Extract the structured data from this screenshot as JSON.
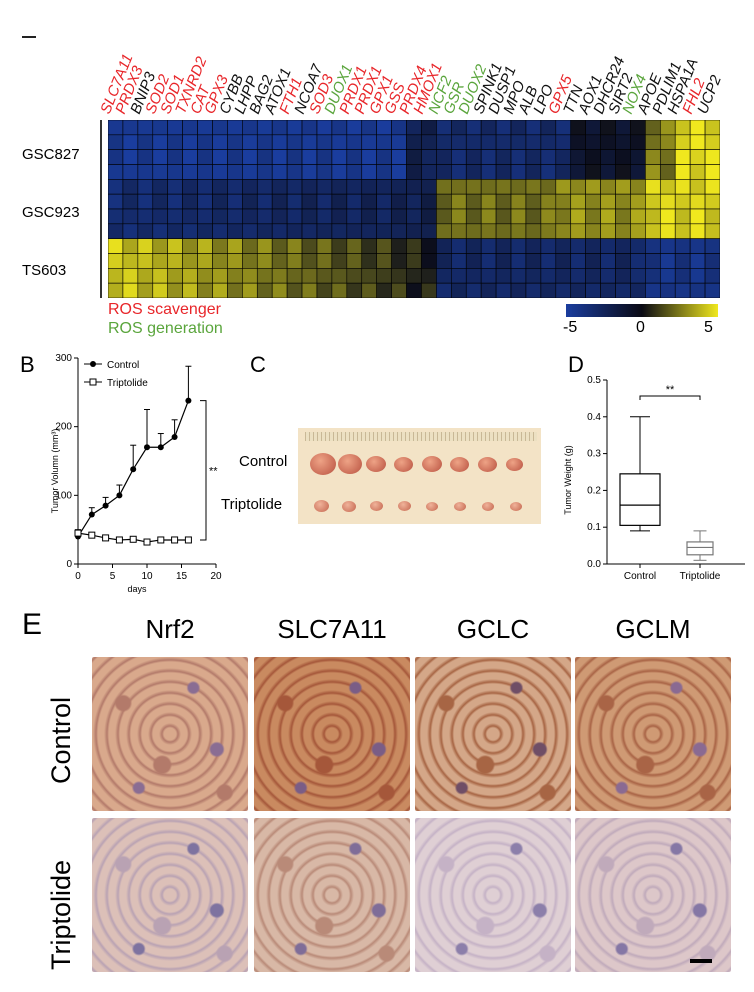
{
  "panel_a": {
    "genes": [
      {
        "name": "SLC7A11",
        "type": "scavenger"
      },
      {
        "name": "PRDX3",
        "type": "scavenger"
      },
      {
        "name": "BNIP3",
        "type": "other"
      },
      {
        "name": "SOD2",
        "type": "scavenger"
      },
      {
        "name": "SOD1",
        "type": "scavenger"
      },
      {
        "name": "TXNRD2",
        "type": "scavenger"
      },
      {
        "name": "CAT",
        "type": "scavenger"
      },
      {
        "name": "GPX3",
        "type": "scavenger"
      },
      {
        "name": "CYBB",
        "type": "other"
      },
      {
        "name": "LHPP",
        "type": "other"
      },
      {
        "name": "BAG2",
        "type": "other"
      },
      {
        "name": "ATOX1",
        "type": "other"
      },
      {
        "name": "FTH1",
        "type": "scavenger"
      },
      {
        "name": "NCOA7",
        "type": "other"
      },
      {
        "name": "SOD3",
        "type": "scavenger"
      },
      {
        "name": "DUOX1",
        "type": "generation"
      },
      {
        "name": "PRDX1",
        "type": "scavenger"
      },
      {
        "name": "PRDX1",
        "type": "scavenger"
      },
      {
        "name": "GPX1",
        "type": "scavenger"
      },
      {
        "name": "GSS",
        "type": "scavenger"
      },
      {
        "name": "PRDX4",
        "type": "scavenger"
      },
      {
        "name": "HMOX1",
        "type": "scavenger"
      },
      {
        "name": "NCF2",
        "type": "generation"
      },
      {
        "name": "GSR",
        "type": "generation"
      },
      {
        "name": "DUOX2",
        "type": "generation"
      },
      {
        "name": "SPINK1",
        "type": "other"
      },
      {
        "name": "DUSP1",
        "type": "other"
      },
      {
        "name": "MPO",
        "type": "other"
      },
      {
        "name": "ALB",
        "type": "other"
      },
      {
        "name": "LPO",
        "type": "other"
      },
      {
        "name": "GPX5",
        "type": "scavenger"
      },
      {
        "name": "TTN",
        "type": "other"
      },
      {
        "name": "AOX1",
        "type": "other"
      },
      {
        "name": "DHCR24",
        "type": "other"
      },
      {
        "name": "SIRT2",
        "type": "other"
      },
      {
        "name": "NOX4",
        "type": "generation"
      },
      {
        "name": "APOE",
        "type": "other"
      },
      {
        "name": "PDLIM1",
        "type": "other"
      },
      {
        "name": "HSPA1A",
        "type": "other"
      },
      {
        "name": "FHL2",
        "type": "scavenger"
      },
      {
        "name": "UCP2",
        "type": "other"
      }
    ],
    "rows": [
      "GSC827",
      "GSC923",
      "TS603"
    ],
    "legend": {
      "scavenger": "ROS scavenger",
      "generation": "ROS generation"
    },
    "colorbar": {
      "ticks": [
        "-5",
        "0",
        "5"
      ]
    },
    "colors": {
      "scavenger": "#e8262a",
      "generation": "#5aa53c",
      "low": "#1a3d9e",
      "mid": "#0a0a14",
      "high": "#f0e81e"
    }
  },
  "panel_b": {
    "letter": "B",
    "chart_data": {
      "type": "line",
      "ylabel": "Tumor Volumn (mm³)",
      "xlabel": "days",
      "xlim": [
        0,
        20
      ],
      "ylim": [
        0,
        300
      ],
      "xticks": [
        "0",
        "5",
        "10",
        "15",
        "20"
      ],
      "yticks": [
        "0",
        "100",
        "200",
        "300"
      ],
      "significance": "**",
      "series": [
        {
          "name": "Control",
          "x": [
            0,
            2,
            4,
            6,
            8,
            10,
            12,
            14,
            16
          ],
          "y": [
            40,
            72,
            85,
            100,
            138,
            170,
            170,
            185,
            238
          ],
          "err": [
            5,
            10,
            12,
            15,
            35,
            55,
            20,
            25,
            50
          ]
        },
        {
          "name": "Triptolide",
          "x": [
            0,
            2,
            4,
            6,
            8,
            10,
            12,
            14,
            16
          ],
          "y": [
            45,
            42,
            38,
            35,
            36,
            32,
            35,
            35,
            35
          ],
          "err": [
            5,
            4,
            3,
            3,
            3,
            3,
            3,
            3,
            3
          ]
        }
      ]
    }
  },
  "panel_c": {
    "letter": "C",
    "labels": [
      "Control",
      "Triptolide"
    ]
  },
  "panel_d": {
    "letter": "D",
    "chart_data": {
      "type": "box",
      "ylabel": "Tumor Weight (g)",
      "categories": [
        "Control",
        "Triptolide"
      ],
      "ylim": [
        0,
        0.5
      ],
      "yticks": [
        "0.0",
        "0.1",
        "0.2",
        "0.3",
        "0.4",
        "0.5"
      ],
      "significance": "**",
      "boxes": [
        {
          "min": 0.09,
          "q1": 0.105,
          "median": 0.16,
          "q3": 0.245,
          "max": 0.4
        },
        {
          "min": 0.01,
          "q1": 0.025,
          "median": 0.045,
          "q3": 0.06,
          "max": 0.09
        }
      ]
    }
  },
  "panel_e": {
    "letter": "E",
    "columns": [
      "Nrf2",
      "SLC7A11",
      "GCLC",
      "GCLM"
    ],
    "rows": [
      "Control",
      "Triptolide"
    ]
  }
}
